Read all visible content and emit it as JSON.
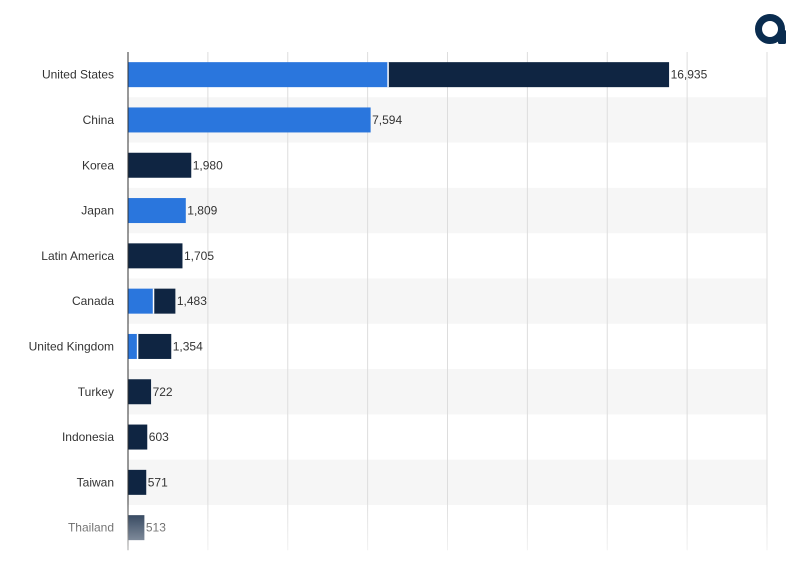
{
  "brand": {
    "logo_icon": "statista-logo-icon",
    "color": "#0a2c4f"
  },
  "colors": {
    "light": "#2a76dd",
    "dark": "#0f2542",
    "grid": "#dddddd",
    "band": "#f6f6f6",
    "axis": "#333333"
  },
  "chart_data": {
    "type": "bar",
    "orientation": "horizontal",
    "stacked": true,
    "categories": [
      "United States",
      "China",
      "Korea",
      "Japan",
      "Latin America",
      "Canada",
      "United Kingdom",
      "Turkey",
      "Indonesia",
      "Taiwan",
      "Thailand"
    ],
    "series": [
      {
        "values": [
          8140,
          7594,
          0,
          1809,
          0,
          799,
          300,
          0,
          0,
          0,
          0
        ],
        "color": "#2a76dd"
      },
      {
        "values": [
          8795,
          0,
          1980,
          0,
          1705,
          684,
          1054,
          722,
          603,
          571,
          513
        ],
        "color": "#0f2542"
      }
    ],
    "totals": [
      16935,
      7594,
      1980,
      1809,
      1705,
      1483,
      1354,
      722,
      603,
      571,
      513
    ],
    "total_labels": [
      "16,935",
      "7,594",
      "1,980",
      "1,809",
      "1,705",
      "1,483",
      "1,354",
      "722",
      "603",
      "571",
      "513"
    ],
    "xlim": [
      0,
      20000
    ],
    "grid": true,
    "legend": "none"
  }
}
